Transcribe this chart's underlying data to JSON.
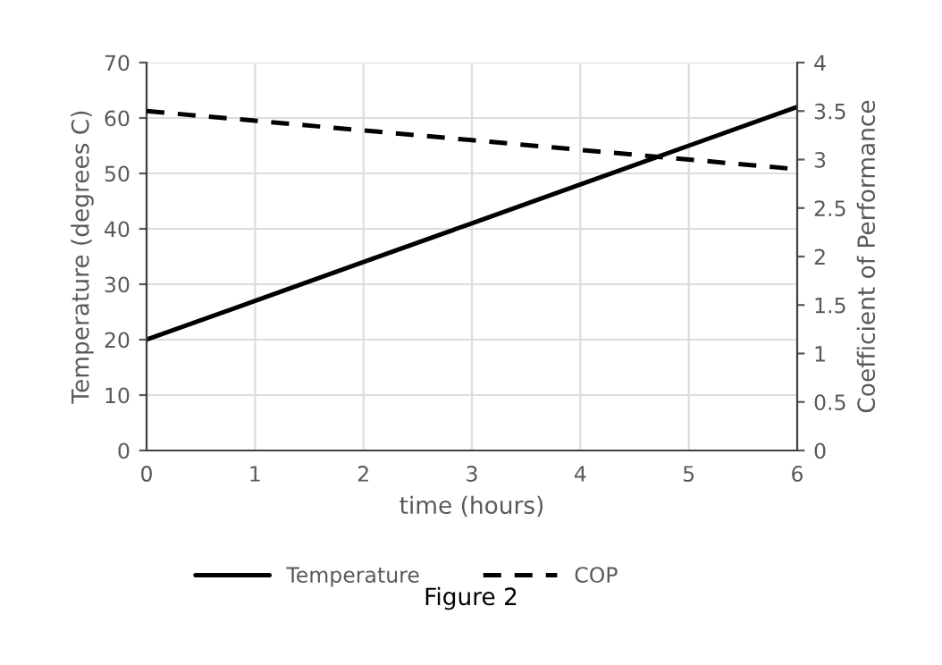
{
  "chart_data": {
    "type": "line",
    "xlabel": "time (hours)",
    "ylabel": "Temperature (degrees C)",
    "y2label": "Coefficient of Performance",
    "x": [
      0,
      1,
      2,
      3,
      4,
      5,
      6
    ],
    "series": [
      {
        "name": "Temperature",
        "color": "#000000",
        "values": [
          20,
          27,
          34,
          41,
          48,
          55,
          62
        ],
        "line_style": "solid"
      },
      {
        "name": "COP",
        "color": "#000000",
        "values": [
          3.5,
          3.4,
          3.3,
          3.2,
          3.1,
          3.0,
          2.9
        ],
        "line_style": "dashed",
        "axis": "y2"
      }
    ],
    "xlim": [
      0,
      6
    ],
    "xticks": [
      0,
      1,
      2,
      3,
      4,
      5,
      6
    ],
    "ylim": [
      0,
      70
    ],
    "yticks": [
      0,
      10,
      20,
      30,
      40,
      50,
      60,
      70
    ],
    "y2lim": [
      0,
      4
    ],
    "y2ticks": [
      0,
      {
        "value": 0.5,
        "label": "0.5"
      },
      1,
      {
        "value": 1.5,
        "label": "1.5"
      },
      2,
      {
        "value": 2.5,
        "label": "2.5"
      },
      3,
      {
        "value": 3.5,
        "label": "3.5"
      },
      4
    ],
    "grid": true,
    "legend": "bottom",
    "marker": "none",
    "annotations": [
      "Figure 2"
    ]
  }
}
